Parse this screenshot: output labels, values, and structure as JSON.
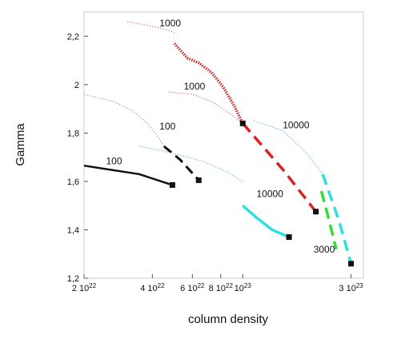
{
  "chart_data": {
    "type": "line",
    "title": "",
    "xlabel": "column density",
    "ylabel": "Gamma",
    "xscale": "log",
    "xlim": [
      2e+22,
      3.4e+23
    ],
    "ylim": [
      1.2,
      2.3
    ],
    "grid": false,
    "legend": "none",
    "x_ticks": [
      {
        "value": 2e+22,
        "mant": "2 10",
        "exp": "22"
      },
      {
        "value": 4e+22,
        "mant": "4 10",
        "exp": "22"
      },
      {
        "value": 6e+22,
        "mant": "6 10",
        "exp": "22"
      },
      {
        "value": 8e+22,
        "mant": "8 10",
        "exp": "22"
      },
      {
        "value": 1e+23,
        "mant": "10",
        "exp": "23"
      },
      {
        "value": 3e+23,
        "mant": "3 10",
        "exp": "23"
      }
    ],
    "y_ticks": [
      {
        "value": 1.2,
        "label": "1,2"
      },
      {
        "value": 1.4,
        "label": "1,4"
      },
      {
        "value": 1.6,
        "label": "1,6"
      },
      {
        "value": 1.8,
        "label": "1,8"
      },
      {
        "value": 2.0,
        "label": "2"
      },
      {
        "value": 2.2,
        "label": "2,2"
      }
    ],
    "series": [
      {
        "color": "#999999",
        "style": "dotted",
        "width": 1,
        "x": [
          2e+22,
          2.7e+22,
          3.3e+22,
          3.8e+22,
          4.2e+22,
          4.5e+22
        ],
        "y": [
          1.96,
          1.93,
          1.89,
          1.84,
          1.79,
          1.745
        ]
      },
      {
        "color": "#111111",
        "style": "dashed",
        "width": 3,
        "x": [
          4.5e+22,
          5.3e+22,
          6.4e+22
        ],
        "y": [
          1.745,
          1.69,
          1.605
        ]
      },
      {
        "color": "#111111",
        "style": "solid",
        "width": 2.5,
        "x": [
          2e+22,
          3.5e+22,
          4.9e+22
        ],
        "y": [
          1.665,
          1.63,
          1.585
        ]
      },
      {
        "color": "#66b3d4",
        "style": "dotted",
        "width": 1,
        "x": [
          3.5e+22,
          4.5e+22,
          5.5e+22,
          6.8e+22,
          8.5e+22,
          1e+23
        ],
        "y": [
          1.745,
          1.725,
          1.705,
          1.68,
          1.64,
          1.6
        ]
      },
      {
        "color": "#e07070",
        "style": "dotted",
        "width": 1,
        "x": [
          3.1e+22,
          3.8e+22,
          4.5e+22,
          5e+22
        ],
        "y": [
          2.26,
          2.245,
          2.23,
          2.215
        ]
      },
      {
        "color": "#dd2222",
        "style": "dotted",
        "width": 3.5,
        "x": [
          5e+22,
          5.7e+22,
          6.4e+22,
          7.3e+22,
          8.2e+22,
          9.2e+22,
          1e+23
        ],
        "y": [
          2.17,
          2.11,
          2.09,
          2.05,
          1.99,
          1.91,
          1.84
        ]
      },
      {
        "color": "#e07070",
        "style": "dotted",
        "width": 1,
        "x": [
          4.7e+22,
          6e+22,
          7.3e+22,
          8.5e+22,
          1e+23
        ],
        "y": [
          1.97,
          1.96,
          1.93,
          1.89,
          1.84
        ]
      },
      {
        "color": "#dd2222",
        "style": "dashed",
        "width": 3.5,
        "x": [
          1e+23,
          1.5e+23,
          2.1e+23
        ],
        "y": [
          1.84,
          1.65,
          1.475
        ]
      },
      {
        "color": "#66b3d4",
        "style": "dotted",
        "width": 1,
        "x": [
          1.12e+23,
          1.5e+23,
          1.9e+23,
          2.25e+23
        ],
        "y": [
          1.85,
          1.81,
          1.72,
          1.63
        ]
      },
      {
        "color": "#2ee0e0",
        "style": "dashed",
        "width": 3.5,
        "x": [
          2.25e+23,
          2.65e+23,
          3e+23
        ],
        "y": [
          1.63,
          1.44,
          1.26
        ]
      },
      {
        "color": "#2ee0e0",
        "style": "solid",
        "width": 3.5,
        "x": [
          1e+23,
          1.15e+23,
          1.35e+23,
          1.6e+23
        ],
        "y": [
          1.5,
          1.45,
          1.4,
          1.37
        ]
      },
      {
        "color": "#33dd33",
        "style": "dashed",
        "width": 3.5,
        "x": [
          2.22e+23,
          2.4e+23,
          2.58e+23
        ],
        "y": [
          1.56,
          1.44,
          1.32
        ]
      }
    ],
    "markers": [
      {
        "x": 4.9e+22,
        "y": 1.585
      },
      {
        "x": 6.4e+22,
        "y": 1.605
      },
      {
        "x": 1e+23,
        "y": 1.84
      },
      {
        "x": 1.6e+23,
        "y": 1.37
      },
      {
        "x": 2.1e+23,
        "y": 1.475
      },
      {
        "x": 3e+23,
        "y": 1.26
      }
    ],
    "annotations": [
      {
        "text": "1000",
        "x": 4.3e+22,
        "y": 2.24
      },
      {
        "text": "1000",
        "x": 5.5e+22,
        "y": 1.98
      },
      {
        "text": "100",
        "x": 4.3e+22,
        "y": 1.815
      },
      {
        "text": "100",
        "x": 2.5e+22,
        "y": 1.67
      },
      {
        "text": "10000",
        "x": 1.5e+23,
        "y": 1.82
      },
      {
        "text": "10000",
        "x": 1.15e+23,
        "y": 1.535
      },
      {
        "text": "3000",
        "x": 2.05e+23,
        "y": 1.305
      }
    ]
  }
}
